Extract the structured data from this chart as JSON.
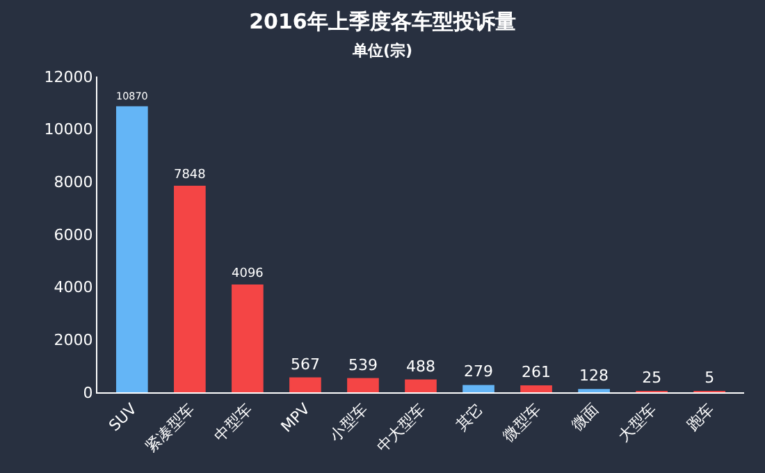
{
  "chart_data": {
    "type": "bar",
    "title": "2016年上季度各车型投诉量",
    "subtitle": "单位(宗)",
    "categories": [
      "SUV",
      "紧凑型车",
      "中型车",
      "MPV",
      "小型车",
      "中大型车",
      "其它",
      "微型车",
      "微面",
      "大型车",
      "跑车"
    ],
    "values": [
      10870,
      7848,
      4096,
      567,
      539,
      488,
      279,
      261,
      128,
      25,
      5
    ],
    "colors": [
      "#64b5f6",
      "#f44545",
      "#f44545",
      "#f44545",
      "#f44545",
      "#f44545",
      "#64b5f6",
      "#f44545",
      "#64b5f6",
      "#f44545",
      "#f44545"
    ],
    "ylim": [
      0,
      12000
    ],
    "yticks": [
      0,
      2000,
      4000,
      6000,
      8000,
      10000,
      12000
    ],
    "grid": false,
    "data_labels": true
  }
}
